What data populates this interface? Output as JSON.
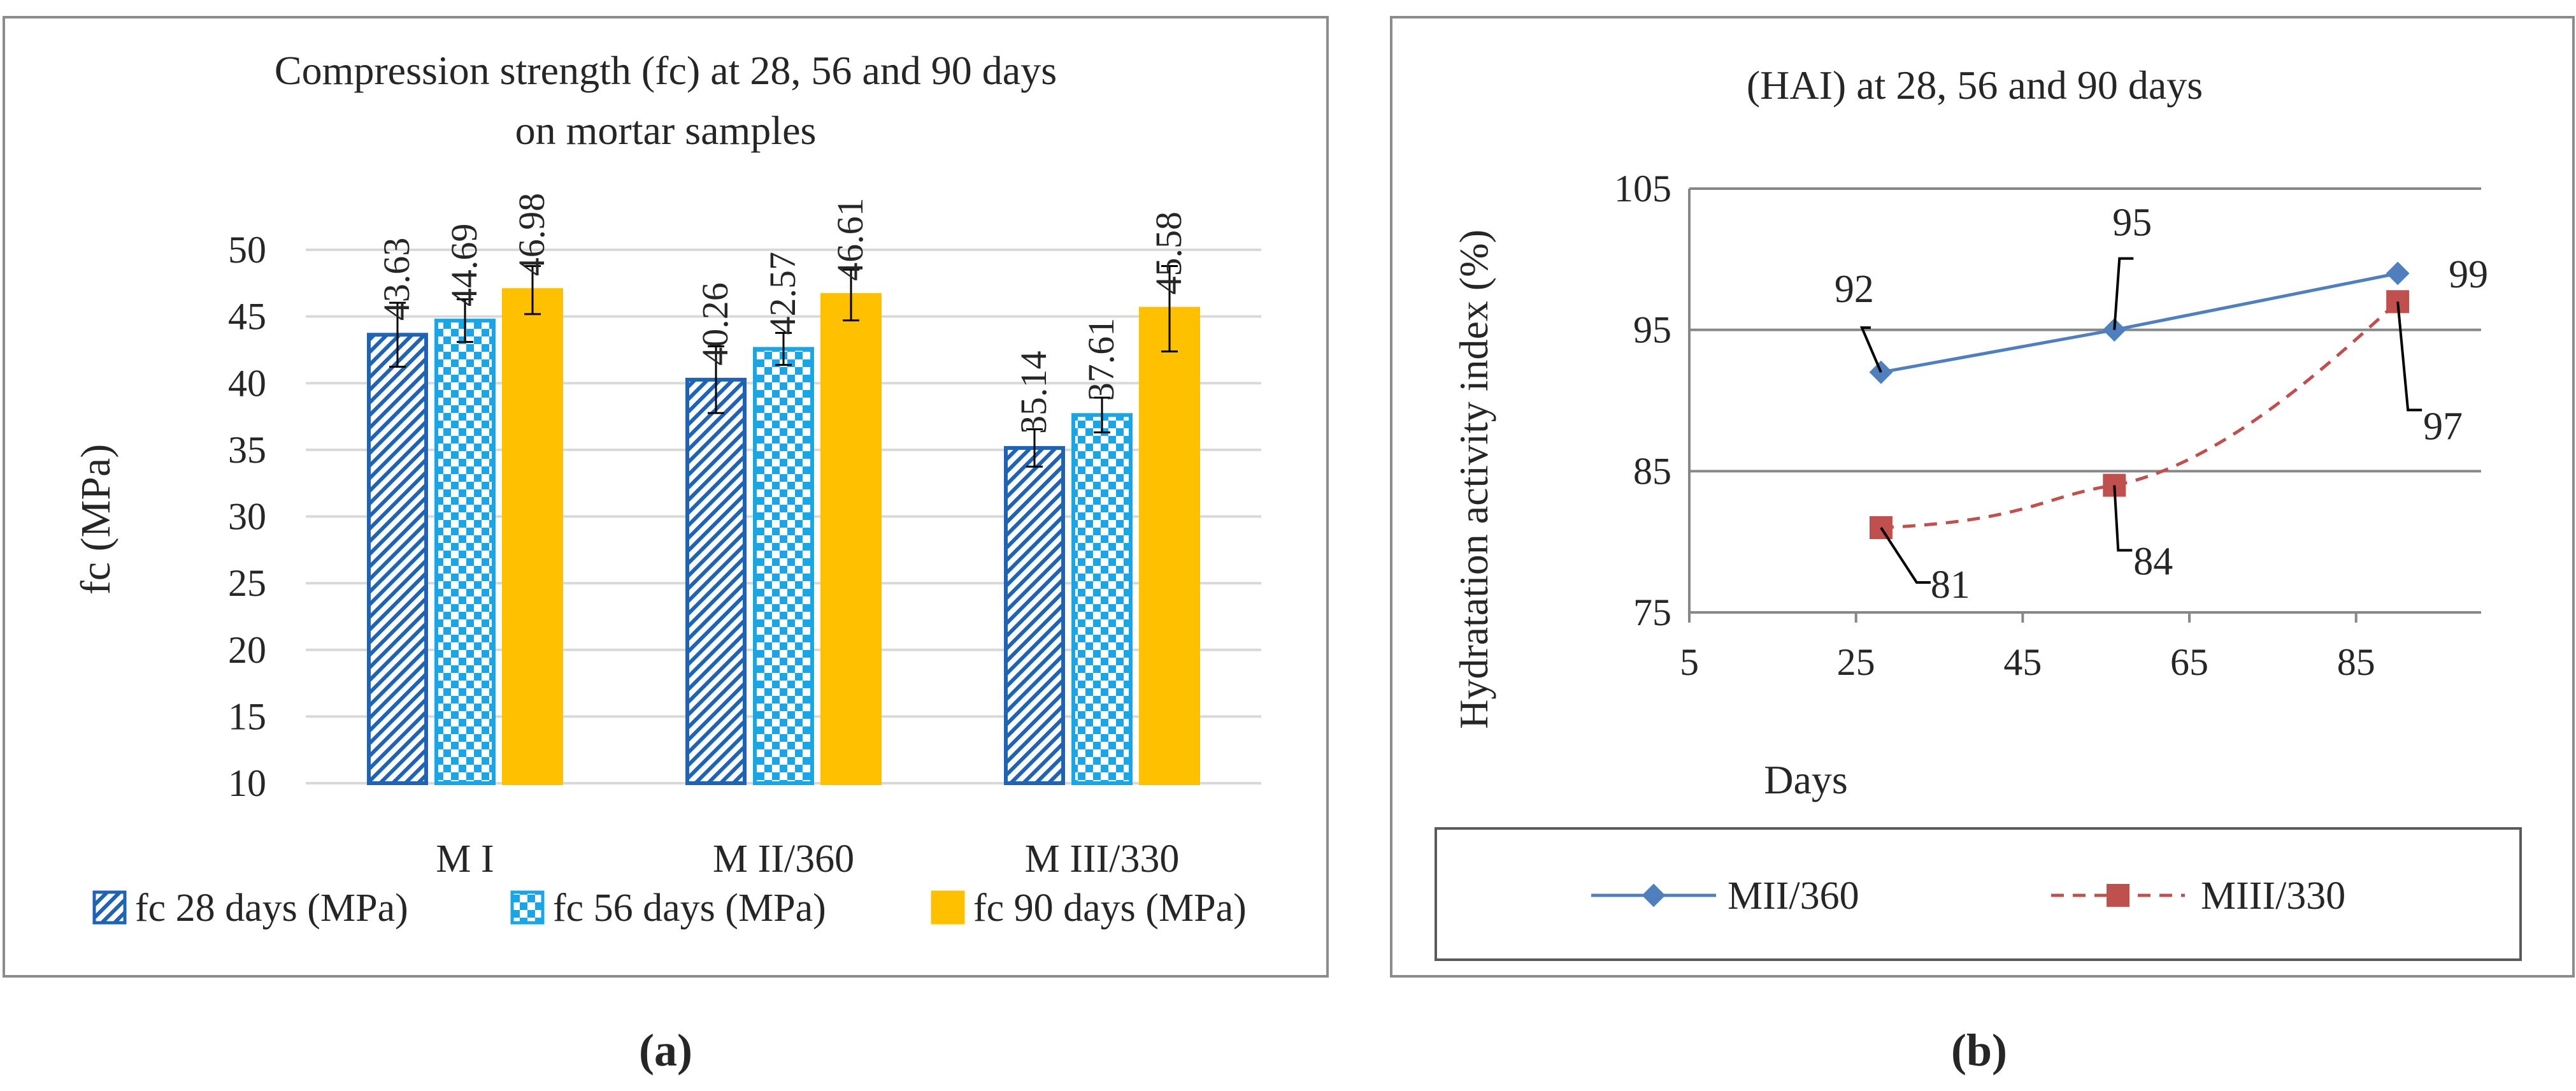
{
  "colors": {
    "fc28": "#1f64b4",
    "fc56": "#1aa6e6",
    "fc90": "#ffc000",
    "series_mii": "#4f7fbf",
    "series_miii": "#c0504d",
    "grid_a": "#d9d9d9",
    "grid_b": "#878787",
    "frame": "#8c8c8c",
    "text": "#262626"
  },
  "panel_a_caption": "(a)",
  "panel_b_caption": "(b)",
  "chart_data": [
    {
      "type": "bar",
      "title": "Compression strength (fc) at 28, 56 and 90 days",
      "subtitle": "on mortar samples",
      "xlabel": "",
      "ylabel": "fc  (MPa)",
      "ylim": [
        10,
        50
      ],
      "yticks": [
        10,
        15,
        20,
        25,
        30,
        35,
        40,
        45,
        50
      ],
      "grid": true,
      "legend_position": "bottom",
      "categories": [
        "M I",
        "M II/360",
        "M III/330"
      ],
      "series": [
        {
          "name": "fc 28 days (MPa)",
          "values": [
            43.63,
            40.26,
            35.14
          ],
          "errors": [
            2.4,
            2.5,
            1.4
          ],
          "labels": [
            "43.63",
            "40.26",
            "35.14"
          ],
          "pattern": "diagonal-hatch"
        },
        {
          "name": "fc 56 days (MPa)",
          "values": [
            44.69,
            42.57,
            37.61
          ],
          "errors": [
            1.6,
            1.2,
            1.3
          ],
          "labels": [
            "44.69",
            "42.57",
            "37.61"
          ],
          "pattern": "checker"
        },
        {
          "name": "fc 90 days (MPa)",
          "values": [
            46.98,
            46.61,
            45.58
          ],
          "errors": [
            1.8,
            1.9,
            3.2
          ],
          "labels": [
            "46.98",
            "46.61",
            "45.58"
          ],
          "pattern": "solid"
        }
      ]
    },
    {
      "type": "line",
      "title": "(HAI) at  28, 56 and 90 days",
      "xlabel": "Days",
      "ylabel": "Hydratation activity  index (%)",
      "xlim": [
        5,
        100
      ],
      "ylim": [
        75,
        105
      ],
      "xticks": [
        5,
        25,
        45,
        65,
        85
      ],
      "yticks": [
        75,
        85,
        95,
        105
      ],
      "grid": true,
      "legend_position": "bottom",
      "series": [
        {
          "name": "MII/360",
          "x": [
            28,
            56,
            90
          ],
          "values": [
            92,
            95,
            99
          ],
          "labels": [
            "92",
            "95",
            "99"
          ],
          "marker": "diamond",
          "line": "solid"
        },
        {
          "name": "MIII/330",
          "x": [
            28,
            56,
            90
          ],
          "values": [
            81,
            84,
            97
          ],
          "labels": [
            "81",
            "84",
            "97"
          ],
          "marker": "square",
          "line": "dashed"
        }
      ]
    }
  ]
}
